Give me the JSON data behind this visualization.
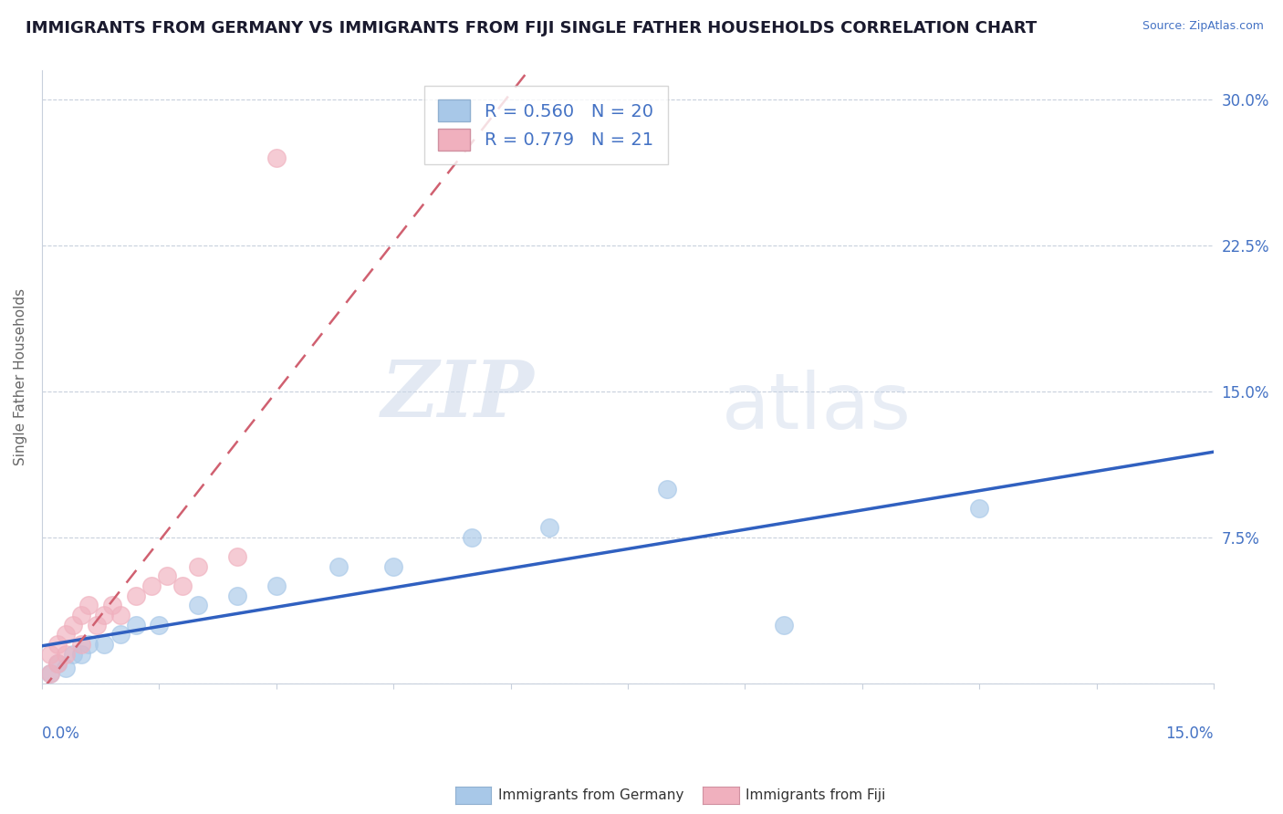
{
  "title": "IMMIGRANTS FROM GERMANY VS IMMIGRANTS FROM FIJI SINGLE FATHER HOUSEHOLDS CORRELATION CHART",
  "source": "Source: ZipAtlas.com",
  "ylabel": "Single Father Households",
  "yticks": [
    0.0,
    0.075,
    0.15,
    0.225,
    0.3
  ],
  "ytick_labels": [
    "",
    "7.5%",
    "15.0%",
    "22.5%",
    "30.0%"
  ],
  "xlim": [
    0.0,
    0.15
  ],
  "ylim": [
    0.0,
    0.315
  ],
  "legend_blue_R": "0.560",
  "legend_blue_N": "20",
  "legend_pink_R": "0.779",
  "legend_pink_N": "21",
  "legend_label_blue": "Immigrants from Germany",
  "legend_label_pink": "Immigrants from Fiji",
  "blue_color": "#a8c8e8",
  "pink_color": "#f0b0be",
  "blue_line_color": "#3060c0",
  "pink_line_color": "#d06070",
  "watermark_zip": "ZIP",
  "watermark_atlas": "atlas",
  "germany_x": [
    0.001,
    0.002,
    0.003,
    0.004,
    0.005,
    0.006,
    0.008,
    0.01,
    0.012,
    0.015,
    0.02,
    0.025,
    0.03,
    0.038,
    0.045,
    0.055,
    0.065,
    0.08,
    0.095,
    0.12
  ],
  "germany_y": [
    0.005,
    0.01,
    0.008,
    0.015,
    0.015,
    0.02,
    0.02,
    0.025,
    0.03,
    0.03,
    0.04,
    0.045,
    0.05,
    0.06,
    0.06,
    0.075,
    0.08,
    0.1,
    0.03,
    0.09
  ],
  "fiji_x": [
    0.001,
    0.001,
    0.002,
    0.002,
    0.003,
    0.003,
    0.004,
    0.005,
    0.005,
    0.006,
    0.007,
    0.008,
    0.009,
    0.01,
    0.012,
    0.014,
    0.016,
    0.018,
    0.02,
    0.025,
    0.03
  ],
  "fiji_y": [
    0.005,
    0.015,
    0.01,
    0.02,
    0.015,
    0.025,
    0.03,
    0.02,
    0.035,
    0.04,
    0.03,
    0.035,
    0.04,
    0.035,
    0.045,
    0.05,
    0.055,
    0.05,
    0.06,
    0.065,
    0.27
  ],
  "title_fontsize": 13,
  "axis_label_fontsize": 11,
  "tick_fontsize": 12,
  "legend_fontsize": 14
}
